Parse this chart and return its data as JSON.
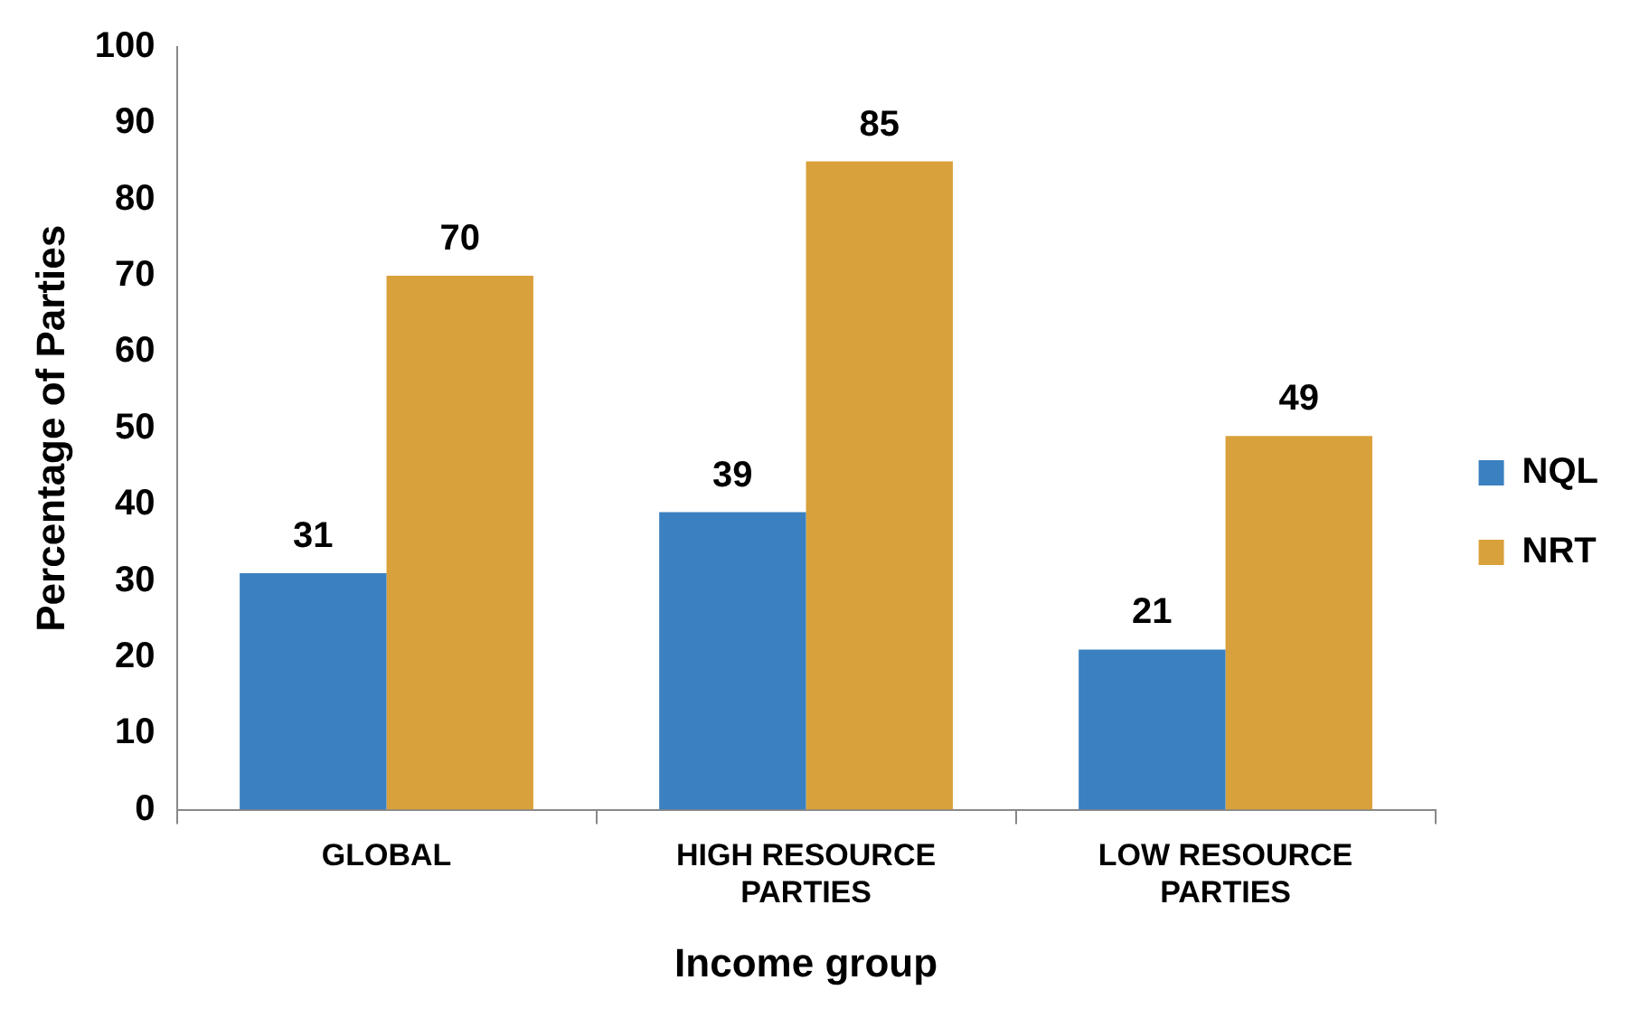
{
  "chart_data": {
    "type": "bar",
    "xlabel": "Income group",
    "ylabel": "Percentage of Parties",
    "categories": [
      "GLOBAL",
      "HIGH RESOURCE PARTIES",
      "LOW RESOURCE PARTIES"
    ],
    "series": [
      {
        "name": "NQL",
        "color": "#3b80c0",
        "values": [
          31,
          39,
          21
        ]
      },
      {
        "name": "NRT",
        "color": "#d9a13b",
        "values": [
          70,
          85,
          49
        ]
      }
    ],
    "ylim": [
      0,
      100
    ],
    "yticks": [
      0,
      10,
      20,
      30,
      40,
      50,
      60,
      70,
      80,
      90,
      100
    ],
    "grid": false,
    "legend": "right",
    "data_labels": true
  }
}
